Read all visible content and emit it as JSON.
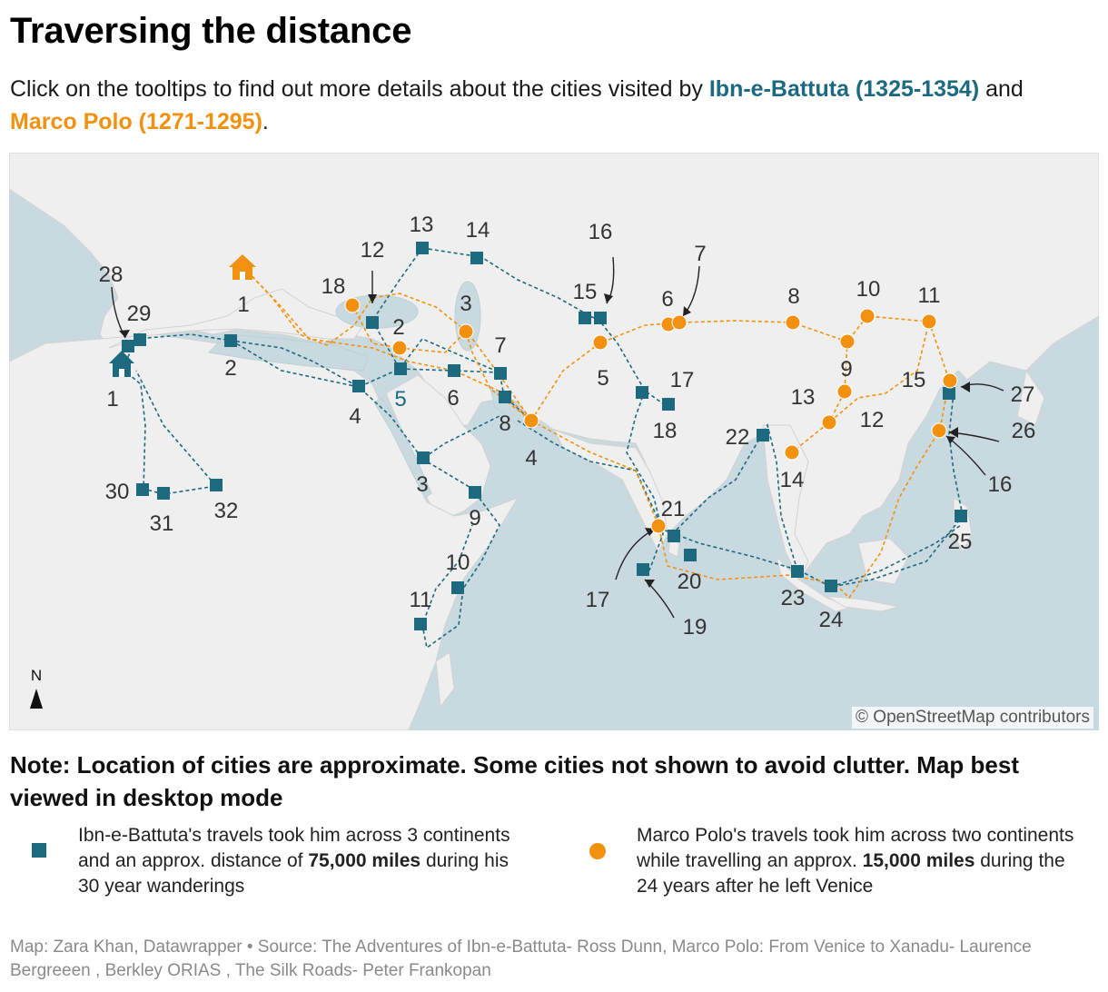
{
  "title": "Traversing the distance",
  "subtitle": {
    "prefix": "Click on the tooltips to find out more details about the cities visited by ",
    "ibn": "Ibn-e-Battuta (1325-1354)",
    "middle": " and ",
    "polo": "Marco Polo (1271-1295)",
    "suffix": "."
  },
  "map": {
    "attribution": "© OpenStreetMap contributors",
    "north_label": "N",
    "colors": {
      "ibn": "#1d6a80",
      "polo": "#f2910f",
      "sea": "#c9d9e0",
      "land": "#efefef"
    },
    "ibn_labels": [
      "1",
      "2",
      "3",
      "4",
      "5",
      "6",
      "7",
      "8",
      "9",
      "10",
      "11",
      "12",
      "13",
      "14",
      "15",
      "16",
      "17",
      "18",
      "19",
      "20",
      "21",
      "22",
      "23",
      "24",
      "25",
      "26",
      "27",
      "28",
      "29",
      "30",
      "31",
      "32"
    ],
    "polo_labels": [
      "1",
      "2",
      "3",
      "4",
      "5",
      "6",
      "7",
      "8",
      "9",
      "10",
      "11",
      "12",
      "13",
      "14",
      "15",
      "16",
      "17",
      "18",
      "21"
    ]
  },
  "note": "Note: Location of cities are approximate. Some cities not shown to avoid clutter. Map best viewed in desktop mode",
  "legend": {
    "ibn": {
      "icon": "square-marker",
      "before": "Ibn-e-Battuta's travels took him across 3 continents and an approx. distance of ",
      "bold": "75,000 miles",
      "after": " during his 30 year wanderings"
    },
    "polo": {
      "icon": "circle-marker",
      "before": "Marco Polo's travels took him across two continents while travelling an approx. ",
      "bold": "15,000 miles",
      "after": " during the 24 years after he left Venice"
    }
  },
  "footer": "Map: Zara Khan, Datawrapper • Source: The Adventures of Ibn-e-Battuta- Ross Dunn, Marco Polo: From Venice to Xanadu- Laurence Bergreeen , Berkley ORIAS , The Silk Roads- Peter Frankopan"
}
